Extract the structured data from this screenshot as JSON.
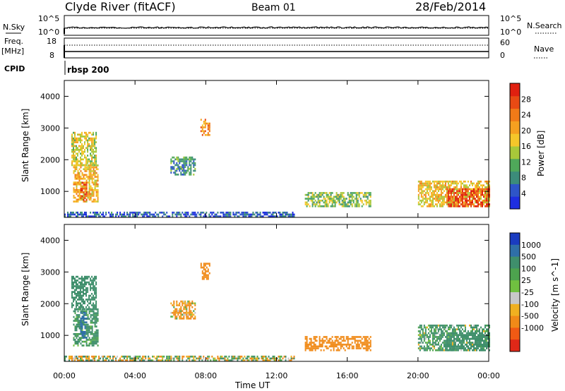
{
  "header": {
    "station": "Clyde River (fitACF)",
    "beam": "Beam 01",
    "date": "28/Feb/2014"
  },
  "summary": {
    "left_labels": [
      "N.Sky",
      "Freq.",
      "[MHz]",
      "CPID"
    ],
    "right_labels": [
      "N.Search",
      "Nave"
    ],
    "nsky_ticks": [
      "10^5",
      "10^0"
    ],
    "nsearch_ticks": [
      "10^5",
      "10^0"
    ],
    "freq_ticks": [
      "18",
      "8"
    ],
    "nave_ticks": [
      "60",
      "0"
    ],
    "cpid_value": "rbsp 200"
  },
  "chart_data": [
    {
      "type": "heatmap",
      "panel": "power",
      "xlabel": "Time UT",
      "ylabel": "Slant Range [km]",
      "xlim": [
        0,
        24
      ],
      "ylim": [
        180,
        4500
      ],
      "x_tick_labels": [
        "00:00",
        "04:00",
        "08:00",
        "12:00",
        "16:00",
        "20:00",
        "00:00"
      ],
      "y_ticks": [
        1000,
        2000,
        3000,
        4000
      ],
      "colorbar": {
        "label": "Power [dB]",
        "ticks": [
          4,
          8,
          12,
          16,
          20,
          24,
          28
        ],
        "range": [
          0,
          32
        ],
        "colors": [
          "#1e2ee0",
          "#2e55c8",
          "#3c8c7a",
          "#4fa85a",
          "#a8c83a",
          "#f5c62a",
          "#f5a020",
          "#f07a18",
          "#e84a14",
          "#e02010"
        ]
      },
      "regions": [
        {
          "x": [
            0.4,
            1.8
          ],
          "r": [
            1800,
            2850
          ],
          "v": 16
        },
        {
          "x": [
            0.5,
            1.9
          ],
          "r": [
            650,
            1800
          ],
          "v": 19
        },
        {
          "x": [
            0.9,
            1.3
          ],
          "r": [
            700,
            1300
          ],
          "v": 27
        },
        {
          "x": [
            6.0,
            7.4
          ],
          "r": [
            1500,
            2050
          ],
          "v": 9
        },
        {
          "x": [
            7.7,
            8.2
          ],
          "r": [
            2750,
            3250
          ],
          "v": 22
        },
        {
          "x": [
            13.6,
            17.3
          ],
          "r": [
            500,
            950
          ],
          "v": 13
        },
        {
          "x": [
            20.0,
            24.0
          ],
          "r": [
            500,
            1300
          ],
          "v": 18
        },
        {
          "x": [
            21.6,
            24.0
          ],
          "r": [
            500,
            1050
          ],
          "v": 28
        },
        {
          "x": [
            0.0,
            13.0
          ],
          "r": [
            180,
            330
          ],
          "v": 5
        }
      ]
    },
    {
      "type": "heatmap",
      "panel": "velocity",
      "xlabel": "Time UT",
      "ylabel": "Slant Range [km]",
      "xlim": [
        0,
        24
      ],
      "ylim": [
        180,
        4500
      ],
      "x_tick_labels": [
        "00:00",
        "04:00",
        "08:00",
        "12:00",
        "16:00",
        "20:00",
        "00:00"
      ],
      "y_ticks": [
        1000,
        2000,
        3000,
        4000
      ],
      "colorbar": {
        "label": "Velocity [m s^-1]",
        "ticks": [
          "1000",
          "500",
          "100",
          "25",
          "-25",
          "-100",
          "-500",
          "-1000"
        ],
        "colors": [
          "#1a3cc0",
          "#2f6fa8",
          "#3f8f6c",
          "#4da34e",
          "#70c040",
          "#c8c8c8",
          "#f0b020",
          "#f08a18",
          "#f05a14",
          "#e02818"
        ]
      },
      "regions": [
        {
          "x": [
            0.4,
            1.8
          ],
          "r": [
            1800,
            2850
          ],
          "v": 300
        },
        {
          "x": [
            0.5,
            1.9
          ],
          "r": [
            650,
            1800
          ],
          "v": 200
        },
        {
          "x": [
            0.9,
            1.3
          ],
          "r": [
            900,
            1700
          ],
          "v": 800
        },
        {
          "x": [
            6.0,
            7.4
          ],
          "r": [
            1500,
            2050
          ],
          "v": -150
        },
        {
          "x": [
            7.7,
            8.2
          ],
          "r": [
            2750,
            3250
          ],
          "v": -300
        },
        {
          "x": [
            13.6,
            17.3
          ],
          "r": [
            500,
            950
          ],
          "v": -300
        },
        {
          "x": [
            20.0,
            24.0
          ],
          "r": [
            500,
            1300
          ],
          "v": 150
        },
        {
          "x": [
            21.6,
            24.0
          ],
          "r": [
            500,
            1050
          ],
          "v": 300
        },
        {
          "x": [
            0.0,
            13.0
          ],
          "r": [
            180,
            330
          ],
          "v": 0
        }
      ]
    }
  ]
}
